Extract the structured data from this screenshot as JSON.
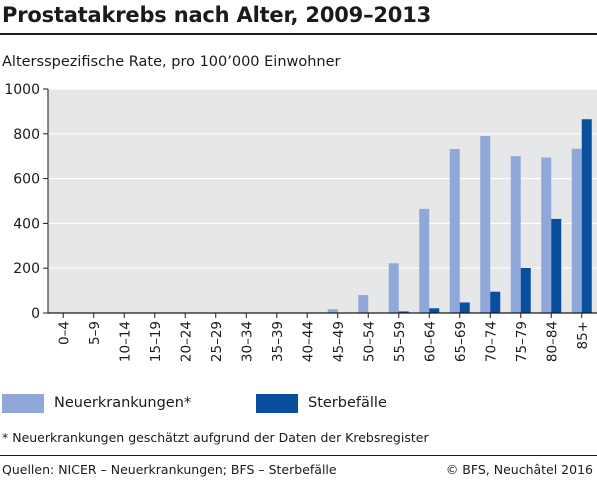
{
  "header": {
    "title": "Prostatakrebs nach Alter, 2009–2013"
  },
  "chart_data": {
    "type": "bar",
    "title": "Prostatakrebs nach Alter, 2009–2013",
    "ylabel": "Altersspezifische Rate, pro 100’000 Einwohner",
    "xlabel": "",
    "ylim": [
      0,
      1000
    ],
    "yticks": [
      0,
      200,
      400,
      600,
      800,
      1000
    ],
    "grid": true,
    "legend_placement": "bottom",
    "categories": [
      "0–4",
      "5–9",
      "10–14",
      "15–19",
      "20–24",
      "25–29",
      "30–34",
      "35–39",
      "40–44",
      "45–49",
      "50–54",
      "55–59",
      "60–64",
      "65–69",
      "70–74",
      "75–79",
      "80–84",
      "85+"
    ],
    "series": [
      {
        "name": "Neuerkrankungen*",
        "color": "#8fa8d9",
        "values": [
          0,
          0,
          0,
          0,
          0,
          0,
          0,
          0,
          2,
          17,
          80,
          222,
          465,
          732,
          790,
          700,
          694,
          733
        ]
      },
      {
        "name": "Sterbefälle",
        "color": "#0a4e9e",
        "values": [
          0,
          0,
          0,
          0,
          0,
          0,
          0,
          0,
          0,
          0,
          2,
          7,
          21,
          47,
          95,
          201,
          420,
          865
        ]
      }
    ]
  },
  "legend": {
    "items": [
      {
        "label": "Neuerkrankungen*",
        "color": "#8fa8d9"
      },
      {
        "label": "Sterbefälle",
        "color": "#0a4e9e"
      }
    ]
  },
  "footnote": "* Neuerkrankungen geschätzt aufgrund der Daten der Krebsregister",
  "footer": {
    "source": "Quellen: NICER – Neuerkrankungen; BFS – Sterbefälle",
    "copyright": "© BFS, Neuchâtel 2016"
  },
  "colors": {
    "plot_background": "#e6e7e9",
    "grid": "#ffffff"
  }
}
